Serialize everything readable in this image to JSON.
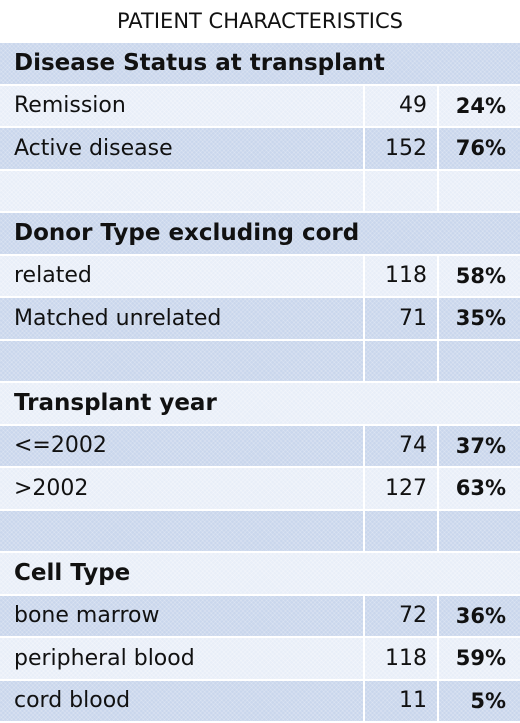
{
  "title": "PATIENT CHARACTERISTICS",
  "sections": [
    {
      "header": "Disease Status at transplant",
      "rows": [
        {
          "label": "Remission",
          "n": "49",
          "pct": "24%"
        },
        {
          "label": "Active disease",
          "n": "152",
          "pct": "76%"
        }
      ]
    },
    {
      "header": "Donor Type excluding cord",
      "rows": [
        {
          "label": "related",
          "n": "118",
          "pct": "58%"
        },
        {
          "label": "Matched unrelated",
          "n": "71",
          "pct": "35%"
        }
      ]
    },
    {
      "header": "Transplant year",
      "rows": [
        {
          "label": "<=2002",
          "n": "74",
          "pct": "37%"
        },
        {
          "label": ">2002",
          "n": "127",
          "pct": "63%"
        }
      ]
    },
    {
      "header": "Cell Type",
      "rows": [
        {
          "label": "bone marrow",
          "n": "72",
          "pct": "36%"
        },
        {
          "label": "peripheral blood",
          "n": "118",
          "pct": "59%"
        },
        {
          "label": "cord blood",
          "n": "11",
          "pct": "5%"
        }
      ]
    }
  ],
  "colors": {
    "row_dark": "#c9d6ec",
    "row_light": "#e8eef8",
    "text": "#111111"
  }
}
